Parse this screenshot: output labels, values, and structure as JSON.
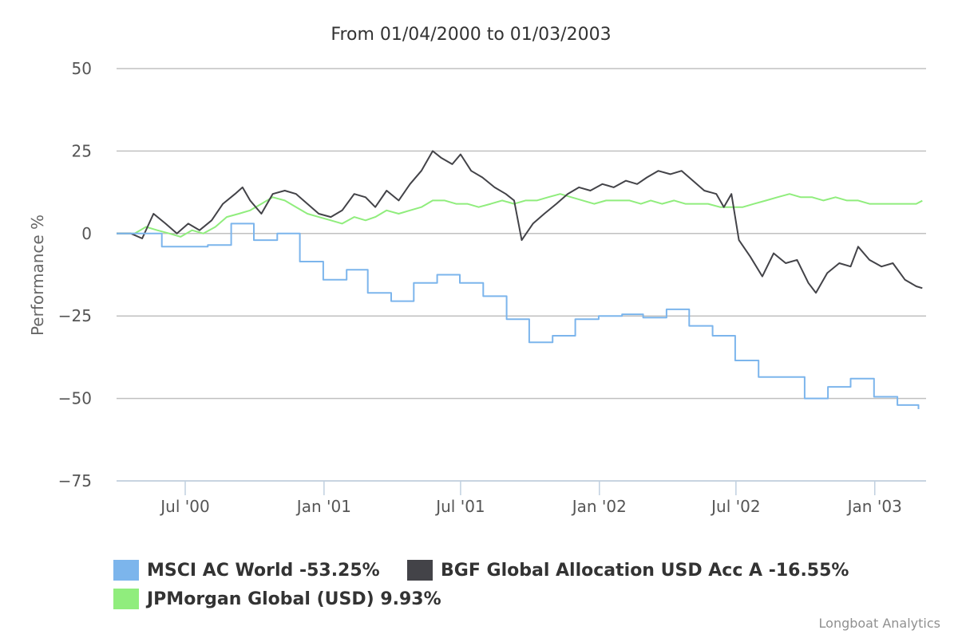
{
  "chart_data": {
    "type": "line",
    "title": "From 01/04/2000 to 01/03/2003",
    "xlabel": "",
    "ylabel": "Performance %",
    "xlim": [
      "2000-04-01",
      "2003-03-10"
    ],
    "ylim": [
      -75,
      50
    ],
    "yticks": [
      50,
      25,
      0,
      -25,
      -50,
      -75
    ],
    "xticks": [
      {
        "date": "2000-07-01",
        "label": "Jul '00"
      },
      {
        "date": "2001-01-01",
        "label": "Jan '01"
      },
      {
        "date": "2001-07-01",
        "label": "Jul '01"
      },
      {
        "date": "2002-01-01",
        "label": "Jan '02"
      },
      {
        "date": "2002-07-01",
        "label": "Jul '02"
      },
      {
        "date": "2003-01-01",
        "label": "Jan '03"
      }
    ],
    "grid": true,
    "legend_position": "bottom-left",
    "series": [
      {
        "name": "MSCI AC World",
        "legend_label": "MSCI AC World -53.25%",
        "color": "#7cb5ec",
        "step": true,
        "points": [
          [
            "2000-04-01",
            0
          ],
          [
            "2000-05-31",
            -4
          ],
          [
            "2000-07-31",
            -3.5
          ],
          [
            "2000-08-31",
            3
          ],
          [
            "2000-09-30",
            -2
          ],
          [
            "2000-10-31",
            0
          ],
          [
            "2000-11-30",
            -8.5
          ],
          [
            "2000-12-31",
            -14
          ],
          [
            "2001-01-31",
            -11
          ],
          [
            "2001-02-28",
            -18
          ],
          [
            "2001-03-31",
            -20.5
          ],
          [
            "2001-04-30",
            -15
          ],
          [
            "2001-05-31",
            -12.5
          ],
          [
            "2001-06-30",
            -15
          ],
          [
            "2001-07-31",
            -19
          ],
          [
            "2001-08-31",
            -26
          ],
          [
            "2001-09-30",
            -33
          ],
          [
            "2001-10-31",
            -31
          ],
          [
            "2001-11-30",
            -26
          ],
          [
            "2001-12-31",
            -25
          ],
          [
            "2002-01-31",
            -24.5
          ],
          [
            "2002-02-28",
            -25.5
          ],
          [
            "2002-03-31",
            -23
          ],
          [
            "2002-04-30",
            -28
          ],
          [
            "2002-05-31",
            -31
          ],
          [
            "2002-06-30",
            -38.5
          ],
          [
            "2002-07-31",
            -43.5
          ],
          [
            "2002-09-30",
            -50
          ],
          [
            "2002-10-31",
            -46.5
          ],
          [
            "2002-11-30",
            -44
          ],
          [
            "2002-12-31",
            -49.5
          ],
          [
            "2003-01-31",
            -52
          ],
          [
            "2003-02-28",
            -53.25
          ]
        ]
      },
      {
        "name": "BGF Global Allocation USD Acc A",
        "legend_label": "BGF Global Allocation USD Acc A -16.55%",
        "color": "#434348",
        "step": false,
        "points": [
          [
            "2000-04-01",
            0
          ],
          [
            "2000-04-20",
            0
          ],
          [
            "2000-05-05",
            -1.5
          ],
          [
            "2000-05-20",
            6
          ],
          [
            "2000-06-05",
            3
          ],
          [
            "2000-06-20",
            0
          ],
          [
            "2000-07-05",
            3
          ],
          [
            "2000-07-20",
            1
          ],
          [
            "2000-08-05",
            4
          ],
          [
            "2000-08-20",
            9
          ],
          [
            "2000-09-05",
            12
          ],
          [
            "2000-09-15",
            14
          ],
          [
            "2000-09-25",
            10
          ],
          [
            "2000-10-10",
            6
          ],
          [
            "2000-10-25",
            12
          ],
          [
            "2000-11-10",
            13
          ],
          [
            "2000-11-25",
            12
          ],
          [
            "2000-12-10",
            9
          ],
          [
            "2000-12-25",
            6
          ],
          [
            "2001-01-10",
            5
          ],
          [
            "2001-01-25",
            7
          ],
          [
            "2001-02-10",
            12
          ],
          [
            "2001-02-25",
            11
          ],
          [
            "2001-03-10",
            8
          ],
          [
            "2001-03-25",
            13
          ],
          [
            "2001-04-10",
            10
          ],
          [
            "2001-04-25",
            15
          ],
          [
            "2001-05-10",
            19
          ],
          [
            "2001-05-25",
            25
          ],
          [
            "2001-06-05",
            23
          ],
          [
            "2001-06-20",
            21
          ],
          [
            "2001-07-01",
            24
          ],
          [
            "2001-07-15",
            19
          ],
          [
            "2001-07-30",
            17
          ],
          [
            "2001-08-15",
            14
          ],
          [
            "2001-08-30",
            12
          ],
          [
            "2001-09-10",
            10
          ],
          [
            "2001-09-20",
            -2
          ],
          [
            "2001-10-05",
            3
          ],
          [
            "2001-10-20",
            6
          ],
          [
            "2001-11-05",
            9
          ],
          [
            "2001-11-20",
            12
          ],
          [
            "2001-12-05",
            14
          ],
          [
            "2001-12-20",
            13
          ],
          [
            "2002-01-05",
            15
          ],
          [
            "2002-01-20",
            14
          ],
          [
            "2002-02-05",
            16
          ],
          [
            "2002-02-20",
            15
          ],
          [
            "2002-03-05",
            17
          ],
          [
            "2002-03-20",
            19
          ],
          [
            "2002-04-05",
            18
          ],
          [
            "2002-04-20",
            19
          ],
          [
            "2002-05-05",
            16
          ],
          [
            "2002-05-20",
            13
          ],
          [
            "2002-06-05",
            12
          ],
          [
            "2002-06-15",
            8
          ],
          [
            "2002-06-25",
            12
          ],
          [
            "2002-07-05",
            -2
          ],
          [
            "2002-07-20",
            -7
          ],
          [
            "2002-08-05",
            -13
          ],
          [
            "2002-08-20",
            -6
          ],
          [
            "2002-09-05",
            -9
          ],
          [
            "2002-09-20",
            -8
          ],
          [
            "2002-10-05",
            -15
          ],
          [
            "2002-10-15",
            -18
          ],
          [
            "2002-10-30",
            -12
          ],
          [
            "2002-11-15",
            -9
          ],
          [
            "2002-11-30",
            -10
          ],
          [
            "2002-12-10",
            -4
          ],
          [
            "2002-12-25",
            -8
          ],
          [
            "2003-01-10",
            -10
          ],
          [
            "2003-01-25",
            -9
          ],
          [
            "2003-02-10",
            -14
          ],
          [
            "2003-02-25",
            -16
          ],
          [
            "2003-03-05",
            -16.55
          ]
        ]
      },
      {
        "name": "JPMorgan Global (USD)",
        "legend_label": "JPMorgan Global (USD) 9.93%",
        "color": "#90ed7d",
        "step": false,
        "points": [
          [
            "2000-04-01",
            0
          ],
          [
            "2000-04-25",
            0
          ],
          [
            "2000-05-10",
            2
          ],
          [
            "2000-05-25",
            1
          ],
          [
            "2000-06-10",
            0
          ],
          [
            "2000-06-25",
            -1
          ],
          [
            "2000-07-10",
            1
          ],
          [
            "2000-07-25",
            0
          ],
          [
            "2000-08-10",
            2
          ],
          [
            "2000-08-25",
            5
          ],
          [
            "2000-09-10",
            6
          ],
          [
            "2000-09-25",
            7
          ],
          [
            "2000-10-10",
            9
          ],
          [
            "2000-10-25",
            11
          ],
          [
            "2000-11-10",
            10
          ],
          [
            "2000-11-25",
            8
          ],
          [
            "2000-12-10",
            6
          ],
          [
            "2000-12-25",
            5
          ],
          [
            "2001-01-10",
            4
          ],
          [
            "2001-01-25",
            3
          ],
          [
            "2001-02-10",
            5
          ],
          [
            "2001-02-25",
            4
          ],
          [
            "2001-03-10",
            5
          ],
          [
            "2001-03-25",
            7
          ],
          [
            "2001-04-10",
            6
          ],
          [
            "2001-04-25",
            7
          ],
          [
            "2001-05-10",
            8
          ],
          [
            "2001-05-25",
            10
          ],
          [
            "2001-06-10",
            10
          ],
          [
            "2001-06-25",
            9
          ],
          [
            "2001-07-10",
            9
          ],
          [
            "2001-07-25",
            8
          ],
          [
            "2001-08-10",
            9
          ],
          [
            "2001-08-25",
            10
          ],
          [
            "2001-09-10",
            9
          ],
          [
            "2001-09-25",
            10
          ],
          [
            "2001-10-10",
            10
          ],
          [
            "2001-10-25",
            11
          ],
          [
            "2001-11-10",
            12
          ],
          [
            "2001-11-25",
            11
          ],
          [
            "2001-12-10",
            10
          ],
          [
            "2001-12-25",
            9
          ],
          [
            "2002-01-10",
            10
          ],
          [
            "2002-01-25",
            10
          ],
          [
            "2002-02-10",
            10
          ],
          [
            "2002-02-25",
            9
          ],
          [
            "2002-03-10",
            10
          ],
          [
            "2002-03-25",
            9
          ],
          [
            "2002-04-10",
            10
          ],
          [
            "2002-04-25",
            9
          ],
          [
            "2002-05-10",
            9
          ],
          [
            "2002-05-25",
            9
          ],
          [
            "2002-06-10",
            8
          ],
          [
            "2002-06-25",
            8
          ],
          [
            "2002-07-10",
            8
          ],
          [
            "2002-07-25",
            9
          ],
          [
            "2002-08-10",
            10
          ],
          [
            "2002-08-25",
            11
          ],
          [
            "2002-09-10",
            12
          ],
          [
            "2002-09-25",
            11
          ],
          [
            "2002-10-10",
            11
          ],
          [
            "2002-10-25",
            10
          ],
          [
            "2002-11-10",
            11
          ],
          [
            "2002-11-25",
            10
          ],
          [
            "2002-12-10",
            10
          ],
          [
            "2002-12-25",
            9
          ],
          [
            "2003-01-10",
            9
          ],
          [
            "2003-01-25",
            9
          ],
          [
            "2003-02-10",
            9
          ],
          [
            "2003-02-25",
            9
          ],
          [
            "2003-03-05",
            9.93
          ]
        ]
      }
    ]
  },
  "credits": "Longboat Analytics"
}
